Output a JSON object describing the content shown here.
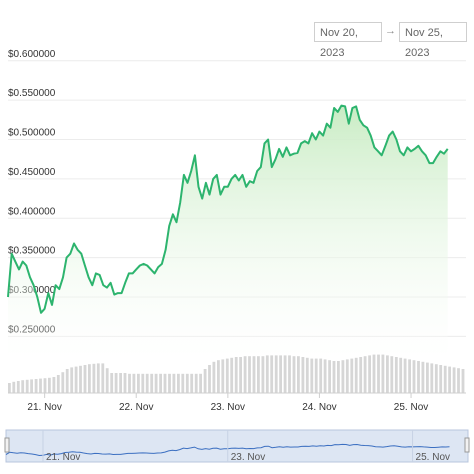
{
  "range": {
    "from": "Nov 20, 2023",
    "arrow": "→",
    "to": "Nov 25, 2023"
  },
  "colors": {
    "line": "#2db46e",
    "fill_top": "#c9ecc4",
    "fill_bottom": "#ffffff",
    "volume": "#d6d6d6",
    "navigator_line": "#3b6fc1",
    "navigator_bg": "#dde6f3"
  },
  "chart_data": {
    "type": "line",
    "ylim": [
      0.22,
      0.62
    ],
    "yticks": [
      "$0.250000",
      "$0.300000",
      "$0.350000",
      "$0.400000",
      "$0.450000",
      "$0.500000",
      "$0.550000",
      "$0.600000"
    ],
    "ytick_values": [
      0.25,
      0.3,
      0.35,
      0.4,
      0.45,
      0.5,
      0.55,
      0.6
    ],
    "xticks": [
      "21. Nov",
      "22. Nov",
      "23. Nov",
      "24. Nov",
      "25. Nov"
    ],
    "xtick_values": [
      1,
      2,
      3,
      4,
      5
    ],
    "xlim": [
      0.6,
      5.6
    ],
    "navigator_ticks": [
      "21. Nov",
      "23. Nov",
      "25. Nov"
    ],
    "navigator_tick_values": [
      1,
      3,
      5
    ],
    "series": [
      {
        "values": [
          [
            0.6,
            0.3
          ],
          [
            0.64,
            0.355
          ],
          [
            0.68,
            0.345
          ],
          [
            0.72,
            0.335
          ],
          [
            0.76,
            0.345
          ],
          [
            0.8,
            0.34
          ],
          [
            0.84,
            0.325
          ],
          [
            0.88,
            0.315
          ],
          [
            0.92,
            0.3
          ],
          [
            0.96,
            0.28
          ],
          [
            1.0,
            0.285
          ],
          [
            1.04,
            0.305
          ],
          [
            1.08,
            0.29
          ],
          [
            1.12,
            0.315
          ],
          [
            1.16,
            0.31
          ],
          [
            1.2,
            0.325
          ],
          [
            1.24,
            0.35
          ],
          [
            1.28,
            0.355
          ],
          [
            1.32,
            0.368
          ],
          [
            1.36,
            0.36
          ],
          [
            1.4,
            0.355
          ],
          [
            1.44,
            0.34
          ],
          [
            1.48,
            0.325
          ],
          [
            1.52,
            0.315
          ],
          [
            1.56,
            0.33
          ],
          [
            1.6,
            0.328
          ],
          [
            1.64,
            0.315
          ],
          [
            1.68,
            0.312
          ],
          [
            1.72,
            0.318
          ],
          [
            1.76,
            0.303
          ],
          [
            1.8,
            0.305
          ],
          [
            1.84,
            0.305
          ],
          [
            1.88,
            0.318
          ],
          [
            1.92,
            0.33
          ],
          [
            1.96,
            0.33
          ],
          [
            2.0,
            0.335
          ],
          [
            2.04,
            0.34
          ],
          [
            2.08,
            0.342
          ],
          [
            2.12,
            0.34
          ],
          [
            2.16,
            0.335
          ],
          [
            2.2,
            0.33
          ],
          [
            2.24,
            0.338
          ],
          [
            2.28,
            0.342
          ],
          [
            2.32,
            0.36
          ],
          [
            2.36,
            0.39
          ],
          [
            2.4,
            0.405
          ],
          [
            2.44,
            0.395
          ],
          [
            2.48,
            0.42
          ],
          [
            2.52,
            0.455
          ],
          [
            2.56,
            0.445
          ],
          [
            2.6,
            0.46
          ],
          [
            2.64,
            0.48
          ],
          [
            2.68,
            0.44
          ],
          [
            2.72,
            0.425
          ],
          [
            2.76,
            0.445
          ],
          [
            2.8,
            0.43
          ],
          [
            2.84,
            0.45
          ],
          [
            2.88,
            0.455
          ],
          [
            2.92,
            0.43
          ],
          [
            2.96,
            0.44
          ],
          [
            3.0,
            0.44
          ],
          [
            3.04,
            0.45
          ],
          [
            3.08,
            0.455
          ],
          [
            3.12,
            0.448
          ],
          [
            3.16,
            0.455
          ],
          [
            3.2,
            0.44
          ],
          [
            3.24,
            0.447
          ],
          [
            3.28,
            0.445
          ],
          [
            3.32,
            0.46
          ],
          [
            3.36,
            0.465
          ],
          [
            3.4,
            0.495
          ],
          [
            3.44,
            0.5
          ],
          [
            3.48,
            0.465
          ],
          [
            3.52,
            0.475
          ],
          [
            3.56,
            0.488
          ],
          [
            3.6,
            0.478
          ],
          [
            3.64,
            0.49
          ],
          [
            3.68,
            0.48
          ],
          [
            3.72,
            0.482
          ],
          [
            3.76,
            0.483
          ],
          [
            3.8,
            0.495
          ],
          [
            3.84,
            0.498
          ],
          [
            3.88,
            0.495
          ],
          [
            3.92,
            0.508
          ],
          [
            3.96,
            0.5
          ],
          [
            4.0,
            0.51
          ],
          [
            4.04,
            0.505
          ],
          [
            4.08,
            0.52
          ],
          [
            4.12,
            0.515
          ],
          [
            4.16,
            0.54
          ],
          [
            4.2,
            0.535
          ],
          [
            4.24,
            0.543
          ],
          [
            4.28,
            0.542
          ],
          [
            4.32,
            0.52
          ],
          [
            4.36,
            0.54
          ],
          [
            4.4,
            0.542
          ],
          [
            4.44,
            0.525
          ],
          [
            4.48,
            0.518
          ],
          [
            4.52,
            0.515
          ],
          [
            4.56,
            0.505
          ],
          [
            4.6,
            0.49
          ],
          [
            4.64,
            0.485
          ],
          [
            4.68,
            0.48
          ],
          [
            4.72,
            0.492
          ],
          [
            4.76,
            0.505
          ],
          [
            4.8,
            0.51
          ],
          [
            4.84,
            0.5
          ],
          [
            4.88,
            0.485
          ],
          [
            4.92,
            0.48
          ],
          [
            4.96,
            0.49
          ],
          [
            5.0,
            0.485
          ],
          [
            5.04,
            0.488
          ],
          [
            5.08,
            0.492
          ],
          [
            5.12,
            0.485
          ],
          [
            5.16,
            0.48
          ],
          [
            5.2,
            0.47
          ],
          [
            5.24,
            0.47
          ],
          [
            5.28,
            0.478
          ],
          [
            5.32,
            0.485
          ],
          [
            5.36,
            0.482
          ],
          [
            5.4,
            0.488
          ]
        ]
      }
    ],
    "volume": [
      0.25,
      0.28,
      0.3,
      0.32,
      0.33,
      0.34,
      0.35,
      0.36,
      0.37,
      0.38,
      0.4,
      0.45,
      0.52,
      0.6,
      0.64,
      0.66,
      0.68,
      0.7,
      0.72,
      0.73,
      0.74,
      0.74,
      0.62,
      0.5,
      0.5,
      0.5,
      0.5,
      0.48,
      0.48,
      0.48,
      0.48,
      0.48,
      0.48,
      0.48,
      0.48,
      0.48,
      0.48,
      0.48,
      0.48,
      0.48,
      0.48,
      0.48,
      0.48,
      0.48,
      0.6,
      0.7,
      0.78,
      0.82,
      0.84,
      0.86,
      0.88,
      0.9,
      0.9,
      0.92,
      0.92,
      0.92,
      0.92,
      0.92,
      0.94,
      0.94,
      0.94,
      0.94,
      0.94,
      0.94,
      0.92,
      0.92,
      0.9,
      0.88,
      0.86,
      0.86,
      0.86,
      0.84,
      0.82,
      0.8,
      0.8,
      0.82,
      0.84,
      0.86,
      0.88,
      0.9,
      0.92,
      0.94,
      0.96,
      0.96,
      0.96,
      0.94,
      0.92,
      0.9,
      0.88,
      0.86,
      0.84,
      0.82,
      0.8,
      0.78,
      0.76,
      0.74,
      0.72,
      0.7,
      0.68,
      0.66,
      0.64,
      0.62,
      0.6
    ]
  }
}
